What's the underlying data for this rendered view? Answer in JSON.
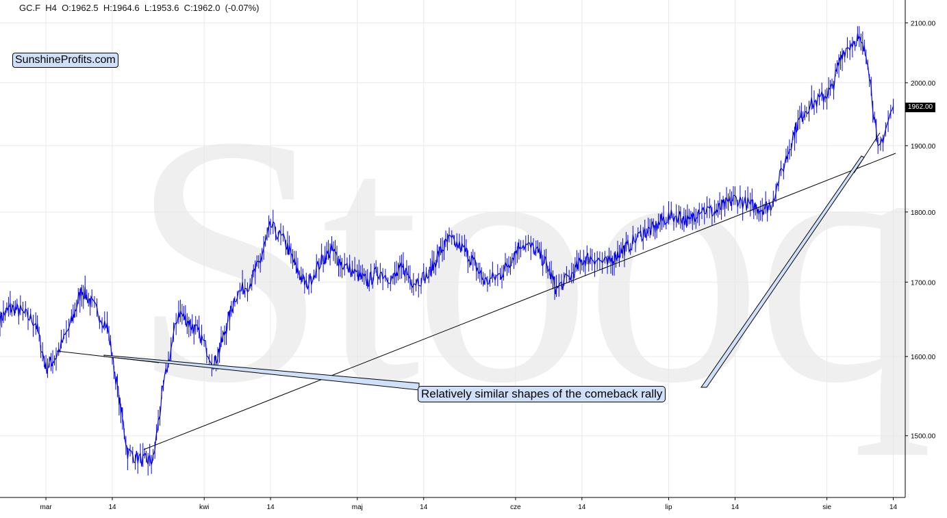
{
  "header": {
    "symbol": "GC.F",
    "interval": "H4",
    "ohlc_text": "O:1962.5  H:1964.6  L:1953.6  C:1962.0  (-0.07%)"
  },
  "brand_label": "SunshineProfits.com",
  "watermark": "Stooq",
  "annotation": "Relatively similar shapes of the comeback rally",
  "current_price_label": "1962.00",
  "colors": {
    "price_line": "#0000ee",
    "trendline": "#000000",
    "annotation_fill": "#cfe0fb",
    "grid": "#e8e8e8"
  },
  "chart_data": {
    "type": "line",
    "title": "",
    "xlabel": "",
    "ylabel": "",
    "ylim": [
      1400,
      2130
    ],
    "y_scale": "log",
    "grid": true,
    "x_ticks": [
      "mar",
      "14",
      "kwi",
      "14",
      "maj",
      "14",
      "cze",
      "14",
      "lip",
      "14",
      "sie",
      "14"
    ],
    "y_ticks": [
      "1500.00",
      "1600.00",
      "1700.00",
      "1800.00",
      "1900.00",
      "2000.00",
      "2100.00"
    ],
    "series": [
      {
        "x": [
          "2023-02-20",
          "2023-02-22",
          "2023-02-24",
          "2023-02-27",
          "2023-03-01",
          "2023-03-03",
          "2023-03-06",
          "2023-03-08",
          "2023-03-10",
          "2023-03-13",
          "2023-03-15",
          "2023-03-17",
          "2023-03-20",
          "2023-03-22",
          "2023-03-24",
          "2023-03-27",
          "2023-03-29",
          "2023-03-31",
          "2023-04-03",
          "2023-04-05",
          "2023-04-07",
          "2023-04-10",
          "2023-04-12",
          "2023-04-14",
          "2023-04-17",
          "2023-04-19",
          "2023-04-21",
          "2023-04-24",
          "2023-04-26",
          "2023-04-28",
          "2023-05-01",
          "2023-05-03",
          "2023-05-05",
          "2023-05-08",
          "2023-05-10",
          "2023-05-12",
          "2023-05-15",
          "2023-05-17",
          "2023-05-19",
          "2023-05-22",
          "2023-05-24",
          "2023-05-26",
          "2023-05-29",
          "2023-05-31",
          "2023-06-02",
          "2023-06-05",
          "2023-06-07",
          "2023-06-09",
          "2023-06-12",
          "2023-06-14",
          "2023-06-16",
          "2023-06-19",
          "2023-06-21",
          "2023-06-23",
          "2023-06-26",
          "2023-06-28",
          "2023-06-30",
          "2023-07-03",
          "2023-07-05",
          "2023-07-07",
          "2023-07-10",
          "2023-07-12",
          "2023-07-14",
          "2023-07-17",
          "2023-07-19",
          "2023-07-21",
          "2023-07-24",
          "2023-07-26",
          "2023-07-28",
          "2023-07-31",
          "2023-08-02",
          "2023-08-04",
          "2023-08-07",
          "2023-08-09",
          "2023-08-11",
          "2023-08-14"
        ],
        "values": [
          1650,
          1665,
          1660,
          1645,
          1585,
          1600,
          1645,
          1690,
          1670,
          1640,
          1560,
          1480,
          1470,
          1470,
          1560,
          1660,
          1645,
          1630,
          1590,
          1630,
          1680,
          1700,
          1730,
          1780,
          1755,
          1720,
          1695,
          1730,
          1745,
          1725,
          1710,
          1700,
          1715,
          1705,
          1720,
          1700,
          1710,
          1740,
          1760,
          1745,
          1725,
          1700,
          1710,
          1730,
          1755,
          1745,
          1725,
          1690,
          1710,
          1730,
          1735,
          1725,
          1740,
          1750,
          1770,
          1775,
          1790,
          1795,
          1785,
          1805,
          1800,
          1810,
          1820,
          1810,
          1805,
          1810,
          1880,
          1930,
          1960,
          1975,
          1990,
          2050,
          2075,
          2040,
          1890,
          1962
        ]
      }
    ],
    "annotations": [
      "Relatively similar shapes of the comeback rally"
    ]
  }
}
